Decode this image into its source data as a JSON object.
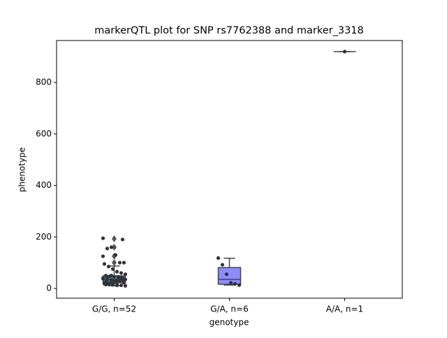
{
  "chart_data": {
    "type": "box",
    "title": "markerQTL plot for SNP rs7762388 and marker_3318",
    "xlabel": "genotype",
    "ylabel": "phenotype",
    "categories": [
      "G/G, n=52",
      "G/A, n=6",
      "A/A, n=1"
    ],
    "ylim": [
      -38,
      963
    ],
    "yticks": [
      0,
      200,
      400,
      600,
      800
    ],
    "boxes": [
      {
        "whislo": 10,
        "q1": 22,
        "med": 35,
        "q3": 49,
        "whishi": 87,
        "fliers": [
          193,
          160,
          125,
          100
        ],
        "color": "#3a8fb7",
        "points": [
          195,
          155,
          160,
          130,
          100,
          100,
          95,
          85,
          75,
          65,
          60,
          55,
          50,
          48,
          45,
          42,
          40,
          38,
          35,
          33,
          30,
          28,
          25,
          22,
          20,
          18,
          15,
          12,
          10,
          15,
          20,
          25,
          30,
          35,
          40,
          45,
          50,
          30,
          28,
          22,
          18,
          16,
          14,
          12,
          40,
          35,
          25,
          20,
          30,
          45,
          190,
          125
        ]
      },
      {
        "whislo": 13,
        "q1": 16,
        "med": 35,
        "q3": 81,
        "whishi": 117,
        "fliers": [],
        "color": "#8c8cff",
        "points": [
          118,
          92,
          55,
          22,
          18,
          13
        ]
      },
      {
        "whislo": 920,
        "q1": 920,
        "med": 920,
        "q3": 920,
        "whishi": 920,
        "fliers": [],
        "color": "#5fb35f",
        "points": [
          920
        ]
      }
    ]
  }
}
